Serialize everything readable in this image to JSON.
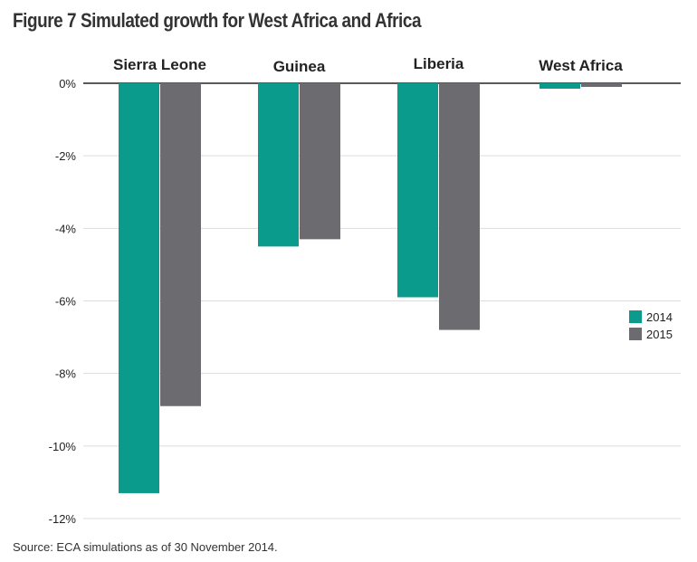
{
  "title": "Figure 7 Simulated growth for West Africa and Africa",
  "source": "Source: ECA simulations as of 30 November 2014.",
  "chart_data": {
    "type": "bar",
    "categories": [
      "Sierra Leone",
      "Guinea",
      "Liberia",
      "West Africa"
    ],
    "series": [
      {
        "name": "2014",
        "color": "#0a9b8c",
        "values": [
          -11.3,
          -4.5,
          -5.9,
          -0.15
        ]
      },
      {
        "name": "2015",
        "color": "#6c6c70",
        "values": [
          -8.9,
          -4.3,
          -6.8,
          -0.1
        ]
      }
    ],
    "yticks": [
      "0%",
      "-2%",
      "-4%",
      "-6%",
      "-8%",
      "-10%",
      "-12%"
    ],
    "ylim": [
      -12,
      0
    ],
    "grid": true,
    "legend": "right"
  }
}
